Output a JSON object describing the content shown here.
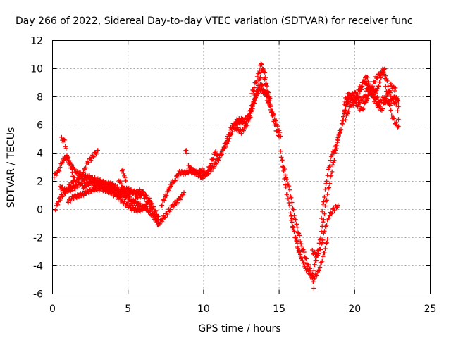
{
  "chart_data": {
    "type": "scatter",
    "title": "Day 266 of 2022, Sidereal Day-to-day VTEC variation (SDTVAR) for receiver func",
    "xlabel": "GPS time / hours",
    "ylabel": "SDTVAR / TECUs",
    "xlim": [
      0,
      25
    ],
    "ylim": [
      -6,
      12
    ],
    "xticks": [
      0,
      5,
      10,
      15,
      20,
      25
    ],
    "yticks": [
      -6,
      -4,
      -2,
      0,
      2,
      4,
      6,
      8,
      10,
      12
    ],
    "grid": true,
    "marker": "+",
    "series": [
      {
        "name": "SDTVAR",
        "color": "#ff0000",
        "tracks": [
          [
            [
              0.1,
              2.4
            ],
            [
              0.4,
              2.7
            ],
            [
              0.7,
              3.6
            ],
            [
              1.0,
              3.7
            ],
            [
              1.3,
              3.0
            ],
            [
              1.6,
              2.6
            ],
            [
              2.0,
              2.5
            ],
            [
              2.3,
              3.3
            ],
            [
              2.7,
              3.8
            ],
            [
              3.0,
              4.2
            ]
          ],
          [
            [
              0.2,
              0.1
            ],
            [
              0.5,
              0.8
            ],
            [
              0.9,
              1.3
            ],
            [
              1.2,
              1.8
            ],
            [
              1.6,
              2.1
            ],
            [
              2.0,
              2.4
            ],
            [
              2.4,
              2.2
            ],
            [
              2.8,
              2.0
            ],
            [
              3.3,
              1.8
            ],
            [
              3.8,
              1.6
            ],
            [
              4.3,
              1.3
            ],
            [
              4.8,
              1.0
            ],
            [
              5.3,
              0.6
            ],
            [
              5.8,
              0.3
            ],
            [
              6.3,
              0.0
            ],
            [
              6.8,
              -0.7
            ],
            [
              7.1,
              -0.9
            ],
            [
              7.5,
              -0.4
            ],
            [
              7.9,
              0.2
            ],
            [
              8.3,
              0.6
            ],
            [
              8.7,
              1.2
            ]
          ],
          [
            [
              0.6,
              5.0
            ],
            [
              0.8,
              4.8
            ],
            [
              0.9,
              4.2
            ],
            [
              1.0,
              3.6
            ],
            [
              1.2,
              3.0
            ],
            [
              1.4,
              2.3
            ]
          ],
          [
            [
              0.5,
              1.6
            ],
            [
              0.9,
              1.3
            ],
            [
              1.4,
              1.5
            ],
            [
              1.9,
              1.9
            ],
            [
              2.4,
              2.3
            ],
            [
              2.9,
              2.1
            ],
            [
              3.4,
              1.9
            ],
            [
              3.9,
              1.8
            ],
            [
              4.4,
              1.4
            ],
            [
              4.9,
              1.2
            ],
            [
              5.4,
              1.2
            ],
            [
              5.9,
              1.3
            ],
            [
              6.2,
              0.9
            ],
            [
              6.5,
              0.2
            ],
            [
              6.8,
              -0.6
            ],
            [
              7.0,
              -1.1
            ]
          ],
          [
            [
              1.0,
              0.6
            ],
            [
              1.5,
              0.9
            ],
            [
              2.0,
              1.1
            ],
            [
              2.6,
              1.4
            ],
            [
              3.2,
              1.5
            ],
            [
              3.7,
              1.3
            ],
            [
              4.2,
              1.0
            ],
            [
              4.7,
              0.5
            ],
            [
              5.2,
              0.1
            ],
            [
              5.7,
              -0.1
            ],
            [
              6.1,
              0.2
            ],
            [
              6.4,
              0.7
            ],
            [
              6.7,
              0.1
            ],
            [
              7.0,
              -0.5
            ]
          ],
          [
            [
              2.0,
              1.6
            ],
            [
              2.5,
              1.9
            ],
            [
              3.0,
              1.7
            ],
            [
              3.5,
              1.5
            ],
            [
              4.0,
              1.3
            ],
            [
              4.5,
              1.0
            ],
            [
              5.0,
              1.4
            ],
            [
              5.5,
              1.2
            ],
            [
              6.0,
              1.1
            ],
            [
              6.4,
              0.4
            ]
          ],
          [
            [
              4.4,
              2.1
            ],
            [
              4.7,
              1.5
            ],
            [
              5.0,
              0.8
            ],
            [
              5.3,
              0.4
            ],
            [
              5.6,
              0.9
            ],
            [
              5.9,
              1.0
            ]
          ],
          [
            [
              4.6,
              2.8
            ],
            [
              4.8,
              2.4
            ],
            [
              4.9,
              1.6
            ],
            [
              5.0,
              0.9
            ]
          ],
          [
            [
              7.2,
              0.3
            ],
            [
              7.5,
              1.0
            ],
            [
              7.8,
              1.7
            ],
            [
              8.1,
              2.1
            ],
            [
              8.4,
              2.6
            ],
            [
              8.7,
              2.6
            ],
            [
              9.1,
              2.7
            ],
            [
              9.5,
              2.6
            ],
            [
              9.9,
              2.3
            ],
            [
              10.3,
              2.6
            ],
            [
              10.7,
              3.1
            ],
            [
              11.0,
              3.6
            ],
            [
              11.3,
              4.2
            ],
            [
              11.6,
              4.8
            ],
            [
              11.9,
              5.6
            ],
            [
              12.2,
              6.1
            ],
            [
              12.6,
              6.3
            ],
            [
              12.9,
              6.5
            ],
            [
              13.1,
              7.1
            ],
            [
              13.3,
              7.7
            ],
            [
              13.5,
              8.3
            ],
            [
              13.7,
              9.3
            ],
            [
              13.9,
              10.0
            ],
            [
              14.0,
              9.4
            ],
            [
              14.2,
              8.3
            ],
            [
              14.4,
              7.5
            ],
            [
              14.6,
              6.5
            ],
            [
              14.8,
              5.7
            ],
            [
              15.0,
              5.2
            ]
          ],
          [
            [
              8.8,
              4.3
            ],
            [
              8.9,
              4.0
            ]
          ],
          [
            [
              9.0,
              3.0
            ],
            [
              9.3,
              2.8
            ],
            [
              9.6,
              2.6
            ],
            [
              9.9,
              2.8
            ],
            [
              10.2,
              2.5
            ],
            [
              10.5,
              3.3
            ],
            [
              10.8,
              4.1
            ],
            [
              11.0,
              3.6
            ],
            [
              11.3,
              4.3
            ],
            [
              11.6,
              5.1
            ],
            [
              11.8,
              5.8
            ],
            [
              12.1,
              6.2
            ],
            [
              12.4,
              6.4
            ],
            [
              12.8,
              6.2
            ],
            [
              13.1,
              6.6
            ],
            [
              13.3,
              7.5
            ],
            [
              13.5,
              8.2
            ],
            [
              13.8,
              8.9
            ],
            [
              14.0,
              8.5
            ],
            [
              14.2,
              7.8
            ],
            [
              14.4,
              7.2
            ],
            [
              14.6,
              6.8
            ],
            [
              14.9,
              5.9
            ],
            [
              15.1,
              5.2
            ]
          ],
          [
            [
              12.1,
              5.8
            ],
            [
              12.5,
              5.5
            ],
            [
              12.9,
              6.1
            ],
            [
              13.3,
              7.6
            ],
            [
              13.7,
              8.6
            ],
            [
              14.1,
              8.2
            ],
            [
              14.4,
              7.9
            ]
          ],
          [
            [
              13.2,
              8.2
            ],
            [
              13.5,
              9.2
            ],
            [
              13.8,
              10.3
            ],
            [
              14.0,
              9.9
            ],
            [
              14.2,
              8.8
            ],
            [
              14.5,
              7.0
            ]
          ],
          [
            [
              15.1,
              4.2
            ],
            [
              15.3,
              2.6
            ],
            [
              15.5,
              1.1
            ],
            [
              15.7,
              0.2
            ],
            [
              15.9,
              -1.1
            ],
            [
              16.1,
              -2.1
            ],
            [
              16.3,
              -3.0
            ],
            [
              16.6,
              -3.8
            ],
            [
              16.8,
              -4.2
            ],
            [
              17.0,
              -4.5
            ],
            [
              17.2,
              -4.9
            ],
            [
              17.3,
              -5.6
            ]
          ],
          [
            [
              15.2,
              3.4
            ],
            [
              15.5,
              2.1
            ],
            [
              15.7,
              1.4
            ],
            [
              15.9,
              0.1
            ],
            [
              16.2,
              -1.3
            ],
            [
              16.5,
              -2.6
            ],
            [
              16.8,
              -3.6
            ],
            [
              17.0,
              -4.2
            ],
            [
              17.3,
              -4.9
            ],
            [
              17.6,
              -4.4
            ],
            [
              17.9,
              -3.4
            ],
            [
              18.2,
              -2.1
            ]
          ],
          [
            [
              15.8,
              -0.8
            ],
            [
              16.0,
              -1.6
            ],
            [
              16.2,
              -2.5
            ],
            [
              16.4,
              -3.2
            ]
          ],
          [
            [
              17.2,
              -3.0
            ],
            [
              17.5,
              -3.3
            ],
            [
              17.8,
              -2.6
            ],
            [
              18.0,
              -1.5
            ],
            [
              18.3,
              -0.5
            ],
            [
              18.6,
              0.0
            ],
            [
              18.9,
              0.3
            ]
          ],
          [
            [
              17.3,
              -4.2
            ],
            [
              17.6,
              -2.8
            ],
            [
              17.9,
              -1.0
            ],
            [
              18.1,
              0.5
            ],
            [
              18.4,
              2.2
            ],
            [
              18.7,
              3.9
            ],
            [
              18.9,
              5.0
            ],
            [
              19.1,
              5.8
            ],
            [
              19.3,
              6.7
            ],
            [
              19.5,
              7.5
            ],
            [
              19.7,
              8.0
            ],
            [
              20.0,
              8.3
            ],
            [
              20.3,
              7.6
            ],
            [
              20.6,
              7.9
            ],
            [
              20.9,
              8.8
            ],
            [
              21.2,
              8.2
            ],
            [
              21.5,
              8.5
            ],
            [
              21.8,
              9.6
            ],
            [
              22.0,
              9.9
            ],
            [
              22.2,
              8.7
            ],
            [
              22.4,
              8.0
            ],
            [
              22.7,
              7.5
            ],
            [
              22.9,
              7.7
            ]
          ],
          [
            [
              17.8,
              -0.5
            ],
            [
              18.0,
              1.0
            ],
            [
              18.2,
              2.5
            ],
            [
              18.5,
              3.9
            ],
            [
              18.8,
              4.6
            ],
            [
              19.0,
              5.6
            ]
          ],
          [
            [
              19.2,
              6.2
            ],
            [
              19.4,
              7.5
            ],
            [
              19.6,
              8.0
            ],
            [
              19.9,
              8.1
            ],
            [
              20.2,
              7.4
            ],
            [
              20.5,
              7.0
            ],
            [
              20.8,
              7.9
            ],
            [
              21.1,
              8.6
            ],
            [
              21.4,
              9.3
            ],
            [
              21.7,
              9.7
            ],
            [
              21.9,
              9.9
            ],
            [
              22.1,
              8.5
            ],
            [
              22.3,
              7.5
            ],
            [
              22.5,
              6.6
            ],
            [
              22.7,
              6.1
            ],
            [
              22.9,
              5.9
            ]
          ],
          [
            [
              19.3,
              7.6
            ],
            [
              19.6,
              8.2
            ],
            [
              19.9,
              7.5
            ],
            [
              20.2,
              7.8
            ],
            [
              20.5,
              8.8
            ],
            [
              20.8,
              9.5
            ],
            [
              21.0,
              8.6
            ],
            [
              21.3,
              7.8
            ],
            [
              21.6,
              7.5
            ],
            [
              21.9,
              7.9
            ],
            [
              22.2,
              7.5
            ],
            [
              22.5,
              7.9
            ],
            [
              22.8,
              8.0
            ],
            [
              22.9,
              7.3
            ]
          ],
          [
            [
              19.4,
              6.5
            ],
            [
              19.7,
              7.3
            ],
            [
              20.0,
              7.9
            ],
            [
              20.3,
              8.5
            ],
            [
              20.6,
              9.1
            ],
            [
              20.9,
              8.9
            ],
            [
              21.2,
              8.2
            ],
            [
              21.5,
              7.4
            ],
            [
              21.8,
              7.1
            ],
            [
              22.1,
              8.0
            ],
            [
              22.4,
              8.8
            ],
            [
              22.7,
              8.5
            ],
            [
              22.9,
              6.4
            ]
          ],
          [
            [
              20.7,
              7.6
            ],
            [
              21.0,
              8.3
            ],
            [
              21.3,
              8.5
            ],
            [
              21.6,
              7.6
            ]
          ]
        ]
      }
    ]
  }
}
